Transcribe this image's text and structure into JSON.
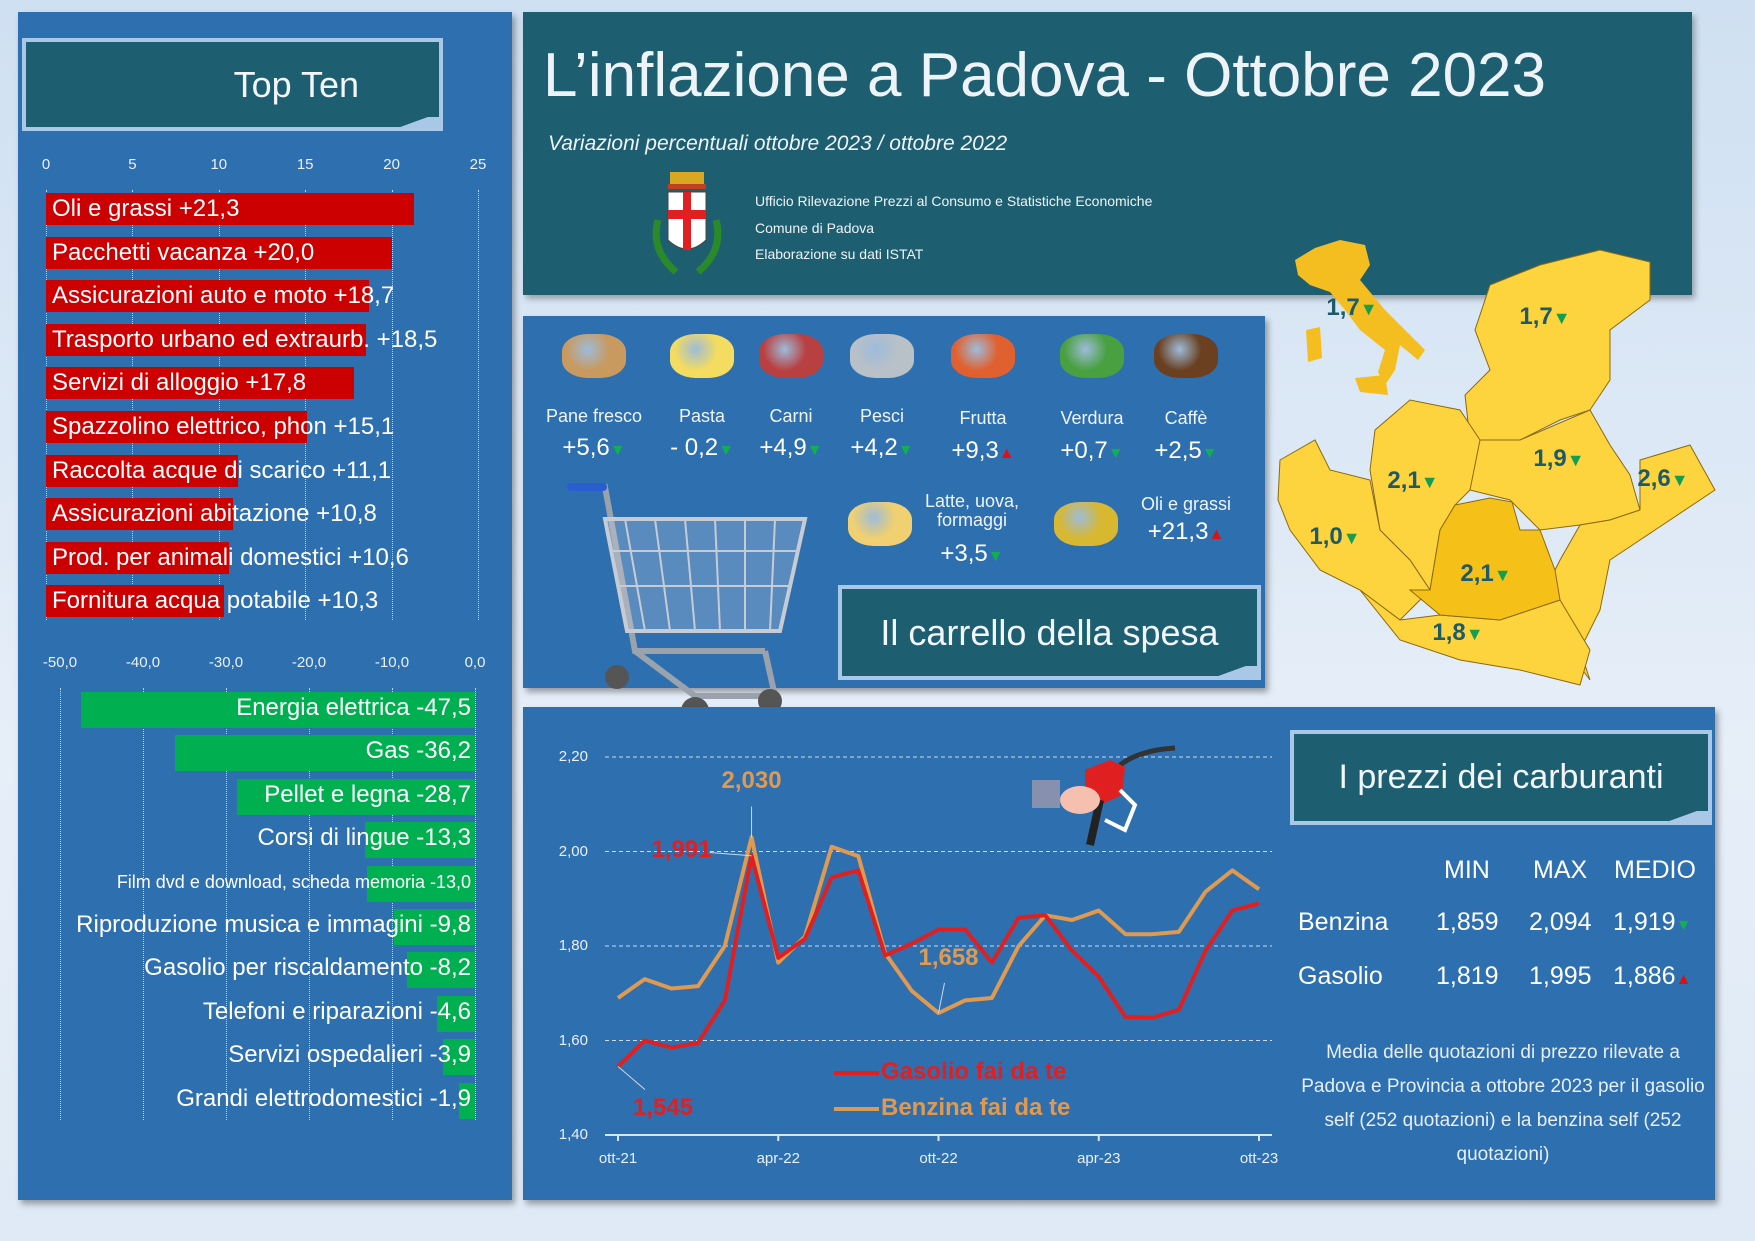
{
  "header": {
    "title": "L’inflazione a Padova - Ottobre 2023",
    "subtitle": "Variazioni percentuali ottobre 2023 / ottobre 2022",
    "credits": [
      "Ufficio Rilevazione Prezzi al Consumo e Statistiche Economiche",
      "Comune di Padova",
      "Elaborazione su dati ISTAT"
    ]
  },
  "top_ten": {
    "title": "Top Ten",
    "axis_ticks": [
      "0",
      "5",
      "10",
      "15",
      "20",
      "25"
    ]
  },
  "bottom_ten": {
    "axis_ticks": [
      "-50,0",
      "-40,0",
      "-30,0",
      "-20,0",
      "-10,0",
      "0,0"
    ]
  },
  "shopping": {
    "title": "Il carrello della spesa",
    "items": [
      {
        "label": "Pane fresco",
        "value": "+5,6",
        "trend": "down"
      },
      {
        "label": "Pasta",
        "value": "- 0,2",
        "trend": "down"
      },
      {
        "label": "Carni",
        "value": "+4,9",
        "trend": "down"
      },
      {
        "label": "Pesci",
        "value": "+4,2",
        "trend": "down"
      },
      {
        "label": "Frutta",
        "value": "+9,3",
        "trend": "up"
      },
      {
        "label": "Verdura",
        "value": "+0,7",
        "trend": "down"
      },
      {
        "label": "Caffè",
        "value": "+2,5",
        "trend": "down"
      },
      {
        "label": "Latte, uova, formaggi",
        "value": "+3,5",
        "trend": "down"
      },
      {
        "label": "Oli e grassi",
        "value": "+21,3",
        "trend": "up"
      }
    ]
  },
  "map": {
    "labels": [
      {
        "area": "Italia",
        "value": "1,7"
      },
      {
        "area": "Belluno",
        "value": "1,7"
      },
      {
        "area": "Vicenza",
        "value": "2,1"
      },
      {
        "area": "Treviso",
        "value": "1,9"
      },
      {
        "area": "Venezia",
        "value": "2,6"
      },
      {
        "area": "Verona",
        "value": "1,0"
      },
      {
        "area": "Padova",
        "value": "2,1"
      },
      {
        "area": "Rovigo",
        "value": "1,8"
      }
    ]
  },
  "fuel": {
    "title": "I prezzi dei carburanti",
    "columns": [
      "MIN",
      "MAX",
      "MEDIO"
    ],
    "rows": [
      {
        "name": "Benzina",
        "min": "1,859",
        "max": "2,094",
        "avg": "1,919",
        "trend": "down"
      },
      {
        "name": "Gasolio",
        "min": "1,819",
        "max": "1,995",
        "avg": "1,886",
        "trend": "up"
      }
    ],
    "note": "Media delle quotazioni di prezzo rilevate a Padova e Provincia a ottobre 2023 per il gasolio self (252 quotazioni) e la benzina self (252 quotazioni)"
  },
  "colors": {
    "red": "#cc0000",
    "green": "#00b050",
    "orange": "#e0a060",
    "line_red": "#e02020",
    "panel": "#2e6fb0",
    "teal": "#1d5f70"
  },
  "chart_data": [
    {
      "type": "bar",
      "title": "Top Ten",
      "orientation": "horizontal",
      "xlim": [
        0,
        25
      ],
      "categories": [
        "Oli e grassi",
        "Pacchetti vacanza",
        "Assicurazioni auto e moto",
        "Trasporto urbano ed extraurb.",
        "Servizi di alloggio",
        "Spazzolino elettrico, phon",
        "Raccolta acque di scarico",
        "Assicurazioni abitazione",
        "Prod. per animali domestici",
        "Fornitura acqua potabile"
      ],
      "values": [
        21.3,
        20.0,
        18.7,
        18.5,
        17.8,
        15.1,
        11.1,
        10.8,
        10.6,
        10.3
      ],
      "value_labels": [
        "+21,3",
        "+20,0",
        "+18,7",
        "+18,5",
        "+17,8",
        "+15,1",
        "+11,1",
        "+10,8",
        "+10,6",
        "+10,3"
      ]
    },
    {
      "type": "bar",
      "orientation": "horizontal",
      "xlim": [
        -50,
        0
      ],
      "categories": [
        "Energia elettrica",
        "Gas",
        "Pellet e legna",
        "Corsi di lingue",
        "Film dvd e download, scheda memoria",
        "Riproduzione musica e immagini",
        "Gasolio per riscaldamento",
        "Telefoni e riparazioni",
        "Servizi ospedalieri",
        "Grandi elettrodomestici"
      ],
      "values": [
        -47.5,
        -36.2,
        -28.7,
        -13.3,
        -13.0,
        -9.8,
        -8.2,
        -4.6,
        -3.9,
        -1.9
      ],
      "value_labels": [
        "-47,5",
        "-36,2",
        "-28,7",
        "-13,3",
        "-13,0",
        "-9,8",
        "-8,2",
        "-4,6",
        "-3,9",
        "-1,9"
      ]
    },
    {
      "type": "line",
      "ylim": [
        1.4,
        2.2
      ],
      "y_ticks": [
        "1,40",
        "1,60",
        "1,80",
        "2,00",
        "2,20"
      ],
      "x_ticks": [
        "ott-21",
        "apr-22",
        "ott-22",
        "apr-23",
        "ott-23"
      ],
      "x_count": 25,
      "grid": true,
      "legend": "bottom-center",
      "series": [
        {
          "name": "Gasolio fai da te",
          "color": "#e02020",
          "values": [
            1.545,
            1.6,
            1.585,
            1.595,
            1.685,
            1.991,
            1.775,
            1.815,
            1.945,
            1.96,
            1.78,
            1.805,
            1.835,
            1.835,
            1.765,
            1.86,
            1.865,
            1.79,
            1.735,
            1.65,
            1.648,
            1.665,
            1.79,
            1.875,
            1.89
          ]
        },
        {
          "name": "Benzina fai da te",
          "color": "#e09a50",
          "values": [
            1.69,
            1.73,
            1.71,
            1.715,
            1.8,
            2.03,
            1.765,
            1.82,
            2.01,
            1.99,
            1.785,
            1.705,
            1.658,
            1.685,
            1.69,
            1.8,
            1.865,
            1.855,
            1.875,
            1.825,
            1.825,
            1.83,
            1.915,
            1.96,
            1.92
          ]
        }
      ],
      "annotations": [
        {
          "text": "2,030",
          "series": "Benzina fai da te",
          "index": 5
        },
        {
          "text": "1,991",
          "series": "Gasolio fai da te",
          "index": 5
        },
        {
          "text": "1,658",
          "series": "Benzina fai da te",
          "index": 12
        },
        {
          "text": "1,545",
          "series": "Gasolio fai da te",
          "index": 0
        }
      ]
    }
  ]
}
